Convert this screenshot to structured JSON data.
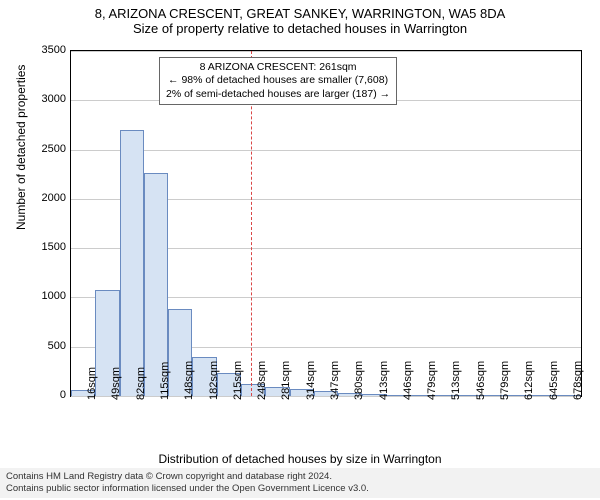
{
  "title": {
    "main": "8, ARIZONA CRESCENT, GREAT SANKEY, WARRINGTON, WA5 8DA",
    "sub": "Size of property relative to detached houses in Warrington",
    "fontsize": 13,
    "color": "#000000"
  },
  "chart": {
    "type": "histogram",
    "background_color": "#ffffff",
    "border_color": "#000000",
    "grid_color": "#cccccc",
    "bar_fill": "#d6e3f3",
    "bar_stroke": "#6a8bc0",
    "ylim": [
      0,
      3500
    ],
    "ytick_step": 500,
    "yticks": [
      0,
      500,
      1000,
      1500,
      2000,
      2500,
      3000,
      3500
    ],
    "ylabel": "Number of detached properties",
    "xlabel": "Distribution of detached houses by size in Warrington",
    "label_fontsize": 12,
    "tick_fontsize": 11,
    "xtick_labels": [
      "16sqm",
      "49sqm",
      "82sqm",
      "115sqm",
      "148sqm",
      "182sqm",
      "215sqm",
      "248sqm",
      "281sqm",
      "314sqm",
      "347sqm",
      "380sqm",
      "413sqm",
      "446sqm",
      "479sqm",
      "513sqm",
      "546sqm",
      "579sqm",
      "612sqm",
      "645sqm",
      "678sqm"
    ],
    "bars": [
      {
        "i": 0,
        "v": 60
      },
      {
        "i": 1,
        "v": 1080
      },
      {
        "i": 2,
        "v": 2700
      },
      {
        "i": 3,
        "v": 2260
      },
      {
        "i": 4,
        "v": 880
      },
      {
        "i": 5,
        "v": 400
      },
      {
        "i": 6,
        "v": 230
      },
      {
        "i": 7,
        "v": 120
      },
      {
        "i": 8,
        "v": 90
      },
      {
        "i": 9,
        "v": 70
      },
      {
        "i": 10,
        "v": 50
      },
      {
        "i": 11,
        "v": 35
      },
      {
        "i": 12,
        "v": 25
      },
      {
        "i": 13,
        "v": 15
      },
      {
        "i": 14,
        "v": 10
      },
      {
        "i": 15,
        "v": 8
      },
      {
        "i": 16,
        "v": 6
      },
      {
        "i": 17,
        "v": 5
      },
      {
        "i": 18,
        "v": 4
      },
      {
        "i": 19,
        "v": 3
      },
      {
        "i": 20,
        "v": 3
      }
    ],
    "num_bars": 21,
    "reference": {
      "index": 7.4,
      "line_color": "#d94646",
      "dash": "4,3"
    },
    "annotation": {
      "line1": "8 ARIZONA CRESCENT: 261sqm",
      "line2": "← 98% of detached houses are smaller (7,608)",
      "line3": "2% of semi-detached houses are larger (187) →",
      "box_border": "#666666",
      "box_bg": "#ffffff",
      "fontsize": 10.5
    }
  },
  "footer": {
    "line1": "Contains HM Land Registry data © Crown copyright and database right 2024.",
    "line2": "Contains public sector information licensed under the Open Government Licence v3.0.",
    "bg": "#f2f2f2",
    "fontsize": 9.5,
    "color": "#333333"
  }
}
